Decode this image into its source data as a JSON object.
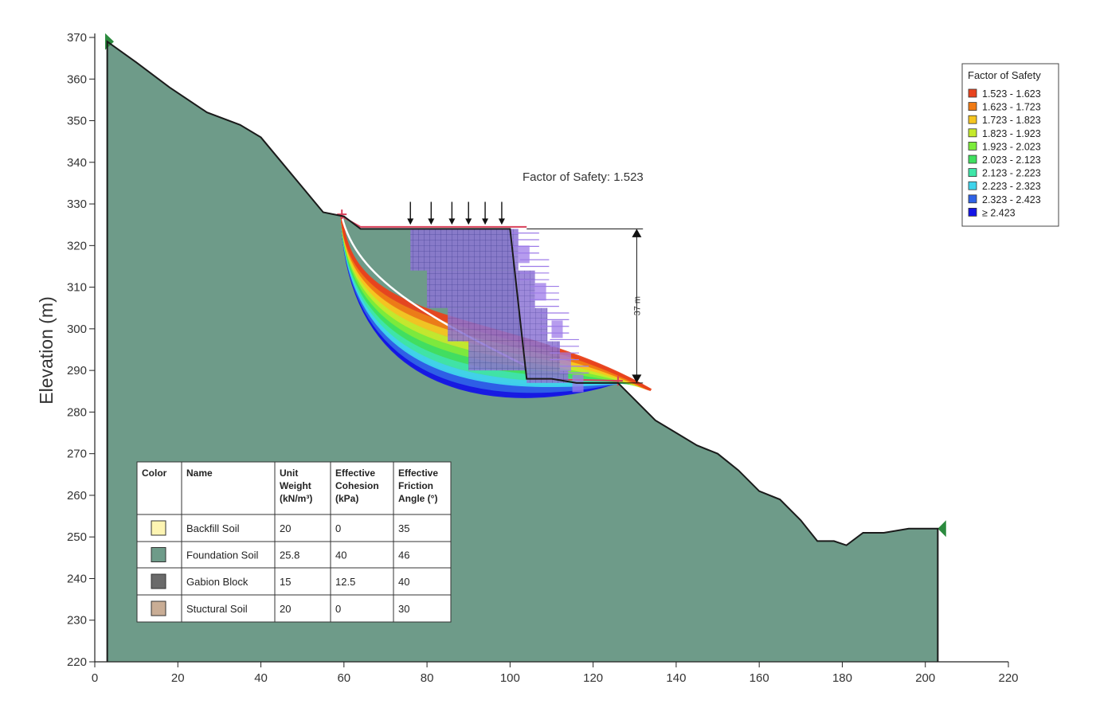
{
  "chart_data": {
    "type": "area",
    "ylabel": "Elevation (m)",
    "xlabel": "",
    "xlim": [
      0,
      220
    ],
    "ylim": [
      220,
      370
    ],
    "xticks": [
      0,
      20,
      40,
      60,
      80,
      100,
      120,
      140,
      160,
      180,
      200,
      220
    ],
    "yticks": [
      220,
      230,
      240,
      250,
      260,
      270,
      280,
      290,
      300,
      310,
      320,
      330,
      340,
      350,
      360,
      370
    ],
    "ground_profile": {
      "x": [
        3,
        10,
        18,
        27,
        35,
        40,
        45,
        50,
        55,
        60,
        64,
        70,
        76,
        82,
        88,
        95,
        100,
        104,
        110,
        116,
        121,
        126,
        130,
        135,
        140,
        145,
        150,
        155,
        160,
        165,
        170,
        174,
        178,
        181,
        185,
        190,
        196,
        203
      ],
      "y": [
        369,
        364,
        358,
        352,
        349,
        346,
        340,
        334,
        328,
        327,
        324,
        324,
        324,
        324,
        324,
        324,
        324,
        288,
        288,
        287,
        287,
        287,
        283,
        278,
        275,
        272,
        270,
        266,
        261,
        259,
        254,
        249,
        249,
        248,
        251,
        251,
        252,
        252
      ]
    },
    "factor_of_safety_label": "Factor of Safety: 1.523",
    "wall_height_label": "37 m",
    "legend": {
      "title": "Factor of Safety",
      "entries": [
        {
          "label": "1.523 - 1.623",
          "color": "#e8431e"
        },
        {
          "label": "1.623 - 1.723",
          "color": "#f07a14"
        },
        {
          "label": "1.723 - 1.823",
          "color": "#f5c520"
        },
        {
          "label": "1.823 - 1.923",
          "color": "#c5ea2b"
        },
        {
          "label": "1.923 - 2.023",
          "color": "#7cec3a"
        },
        {
          "label": "2.023 - 2.123",
          "color": "#3fe05f"
        },
        {
          "label": "2.123 - 2.223",
          "color": "#3ee6a8"
        },
        {
          "label": "2.223 - 2.323",
          "color": "#3fd4ec"
        },
        {
          "label": "2.323 - 2.423",
          "color": "#2f62e6"
        },
        {
          "label": "≥ 2.423",
          "color": "#1414e6"
        }
      ]
    },
    "materials_table": {
      "headers": [
        [
          "Color"
        ],
        [
          "Name"
        ],
        [
          "Unit",
          "Weight",
          "(kN/m³)"
        ],
        [
          "Effective",
          "Cohesion",
          "(kPa)"
        ],
        [
          "Effective",
          "Friction",
          "Angle (°)"
        ]
      ],
      "rows": [
        {
          "color": "#fdf4b2",
          "name": "Backfill Soil",
          "unit_weight": "20",
          "cohesion": "0",
          "friction": "35"
        },
        {
          "color": "#6e9b89",
          "name": "Foundation Soil",
          "unit_weight": "25.8",
          "cohesion": "40",
          "friction": "46"
        },
        {
          "color": "#6a6a6a",
          "name": "Gabion Block",
          "unit_weight": "15",
          "cohesion": "12.5",
          "friction": "40"
        },
        {
          "color": "#c9ad95",
          "name": "Stuctural Soil",
          "unit_weight": "20",
          "cohesion": "0",
          "friction": "30"
        }
      ]
    },
    "colors": {
      "foundation": "#6e9b89",
      "ground_line": "#1a1a1a",
      "wall_fill": "#8f76d6",
      "wall_line": "#9d7be8",
      "critical_surface": "#d9405a"
    }
  }
}
